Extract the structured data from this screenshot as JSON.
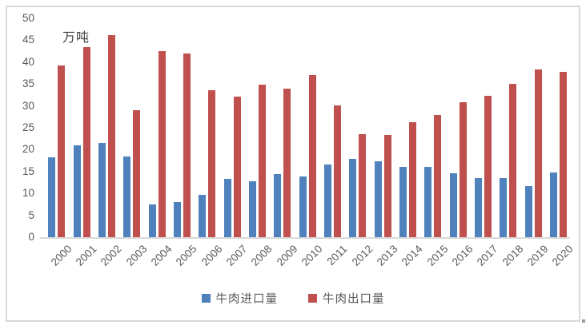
{
  "unit_label": "万吨",
  "legend": {
    "items": [
      {
        "label": "牛肉进口量",
        "color": "#4F81BD"
      },
      {
        "label": "牛肉出口量",
        "color": "#C0504D"
      }
    ]
  },
  "colors": {
    "import_bar": "#4F81BD",
    "export_bar": "#C0504D",
    "axis_line": "#d9d9d9",
    "frame_border": "#d9d9d9",
    "tick_text": "#595959"
  },
  "chart_data": {
    "type": "bar",
    "title": "",
    "unit": "万吨",
    "xlabel": "",
    "ylabel": "万吨",
    "ylim": [
      0,
      50
    ],
    "yticks": [
      0,
      5,
      10,
      15,
      20,
      25,
      30,
      35,
      40,
      45,
      50
    ],
    "grid": false,
    "legend_position": "bottom",
    "categories": [
      "2000",
      "2001",
      "2002",
      "2003",
      "2004",
      "2005",
      "2006",
      "2007",
      "2008",
      "2009",
      "2010",
      "2011",
      "2012",
      "2013",
      "2014",
      "2015",
      "2016",
      "2017",
      "2018",
      "2019",
      "2020"
    ],
    "series": [
      {
        "name": "牛肉进口量",
        "color": "#4F81BD",
        "values": [
          18.2,
          21.0,
          21.5,
          18.4,
          7.5,
          8.1,
          9.7,
          13.4,
          12.7,
          14.4,
          13.9,
          16.6,
          17.8,
          17.4,
          16.0,
          16.0,
          14.6,
          13.5,
          13.5,
          11.7,
          14.8
        ]
      },
      {
        "name": "牛肉出口量",
        "color": "#C0504D",
        "values": [
          39.2,
          43.4,
          46.1,
          29.0,
          42.6,
          42.0,
          33.6,
          32.2,
          34.8,
          33.9,
          37.0,
          30.1,
          23.5,
          23.3,
          26.3,
          27.9,
          30.8,
          32.3,
          35.0,
          38.4,
          37.8
        ]
      }
    ]
  }
}
